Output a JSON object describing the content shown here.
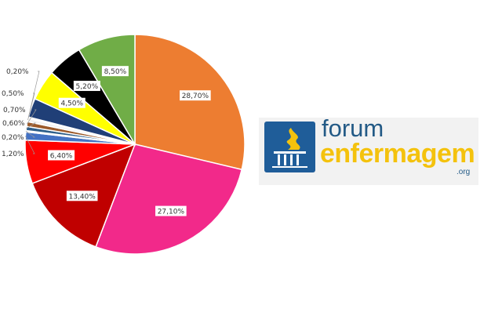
{
  "chart_data": {
    "type": "pie",
    "start": "top",
    "direction": "clockwise",
    "slices": [
      {
        "label": "28,70%",
        "value": 28.7,
        "color": "#ED7D31"
      },
      {
        "label": "27,10%",
        "value": 27.1,
        "color": "#F2298A"
      },
      {
        "label": "13,40%",
        "value": 13.4,
        "color": "#C00000"
      },
      {
        "label": "6,40%",
        "value": 6.4,
        "color": "#FF0000"
      },
      {
        "label": "1,20%",
        "value": 1.2,
        "color": "#4472C4"
      },
      {
        "label": "0,20%",
        "value": 0.2,
        "color": "#D9D9D9"
      },
      {
        "label": "0,60%",
        "value": 0.6,
        "color": "#2E5F8A"
      },
      {
        "label": "0,70%",
        "value": 0.7,
        "color": "#9C5A2A"
      },
      {
        "label": "0,50%",
        "value": 0.5,
        "color": "#F2F2F2"
      },
      {
        "label": "0,20%",
        "value": 0.2,
        "color": "#BFBFBF"
      },
      {
        "label": "",
        "value": 2.8,
        "color": "#203F77"
      },
      {
        "label": "4,50%",
        "value": 4.5,
        "color": "#FFFF00"
      },
      {
        "label": "5,20%",
        "value": 5.2,
        "color": "#000000"
      },
      {
        "label": "8,50%",
        "value": 8.5,
        "color": "#70AD47"
      }
    ]
  },
  "logo": {
    "forum": "forum",
    "enfermagem": "enfermagem",
    "org": ".org"
  }
}
